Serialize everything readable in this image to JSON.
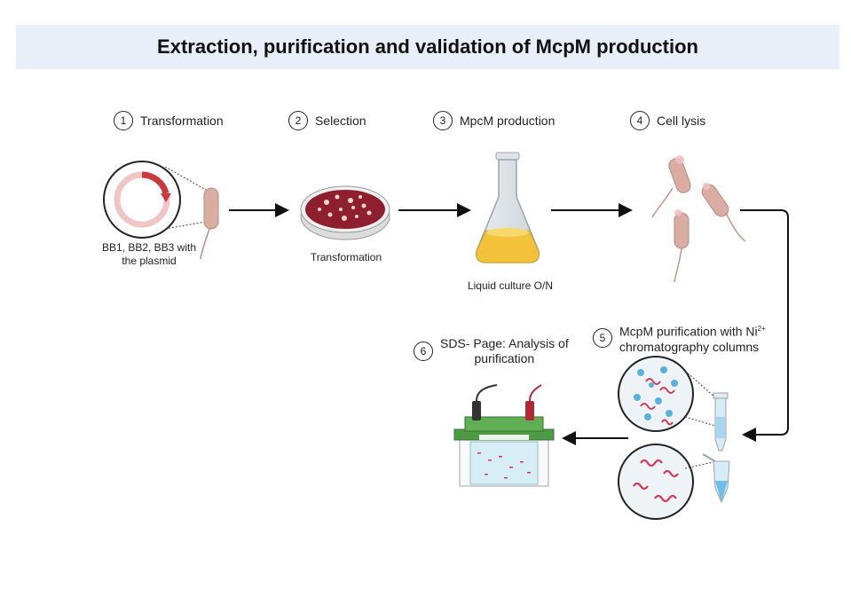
{
  "title": "Extraction, purification and validation of McpM production",
  "steps": [
    {
      "num": "1",
      "label": "Transformation"
    },
    {
      "num": "2",
      "label": "Selection"
    },
    {
      "num": "3",
      "label": "MpcM production"
    },
    {
      "num": "4",
      "label": "Cell lysis"
    },
    {
      "num": "5",
      "label_line1": "McpM purification with Ni",
      "label_sup": "2+",
      "label_line2": "chromatography columns"
    },
    {
      "num": "6",
      "label_line1": "SDS- Page: Analysis of",
      "label_line2": "purification"
    }
  ],
  "captions": {
    "plasmid_line1": "BB1, BB2, BB3 with",
    "plasmid_line2": "the plasmid",
    "plate": "Transformation",
    "flask": "Liquid culture O/N"
  },
  "colors": {
    "banner": "#e9eff8",
    "bacteria": "#d9ada2",
    "plate_agar": "#8e1f2e",
    "culture": "#f3c23a",
    "protein": "#d43a52",
    "beads": "#5ab0dc",
    "gel_box": "#4f9a45"
  }
}
